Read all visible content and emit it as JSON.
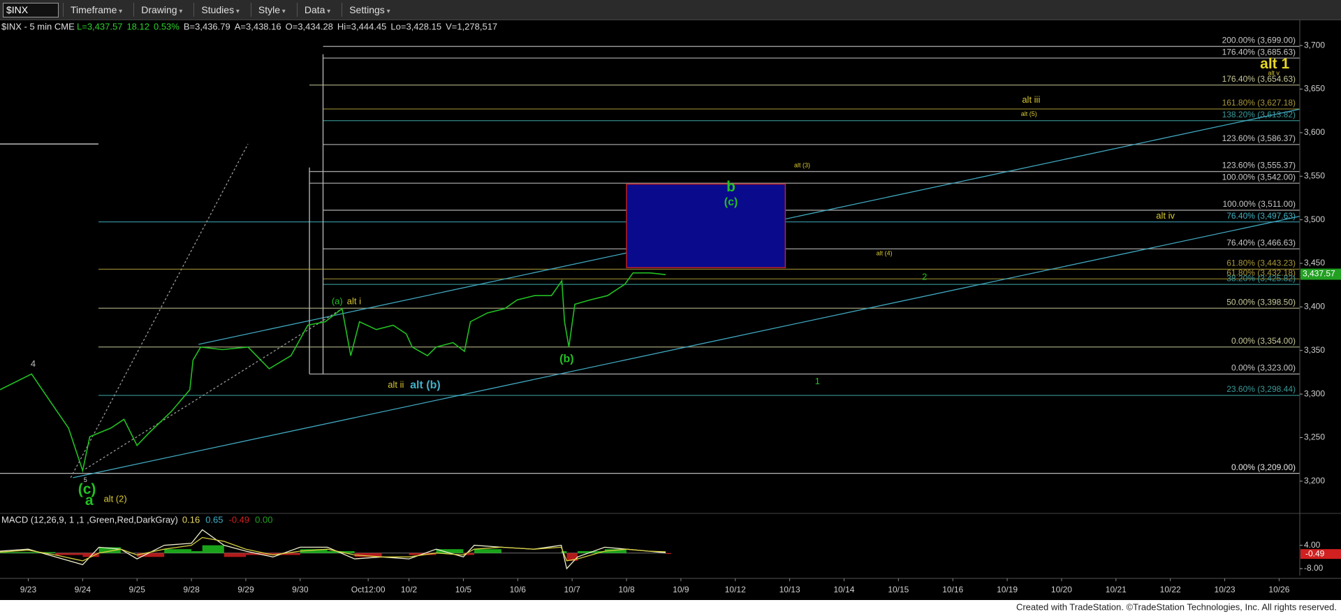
{
  "toolbar": {
    "symbol": "$INX",
    "buttons": [
      "Timeframe",
      "Drawing",
      "Studies",
      "Style",
      "Data",
      "Settings"
    ]
  },
  "footer": "Created with TradeStation. ©TradeStation Technologies, Inc. All rights reserved.",
  "chart_data": [
    {
      "type": "line",
      "title": "$INX - 5 min CME",
      "header_values": [
        {
          "text": "L=3,437.57",
          "color": "#2ad02a"
        },
        {
          "text": "18.12",
          "color": "#2ad02a"
        },
        {
          "text": "0.53%",
          "color": "#2ad02a"
        },
        {
          "text": "B=3,436.79",
          "color": "#d8d8d8"
        },
        {
          "text": "A=3,438.16",
          "color": "#d8d8d8"
        },
        {
          "text": "O=3,434.28",
          "color": "#d8d8d8"
        },
        {
          "text": "Hi=3,444.45",
          "color": "#d8d8d8"
        },
        {
          "text": "Lo=3,428.15",
          "color": "#d8d8d8"
        },
        {
          "text": "V=1,278,517",
          "color": "#d8d8d8"
        }
      ],
      "x": [
        -0.52,
        0.06,
        0.42,
        0.74,
        1.0,
        1.13,
        1.52,
        1.76,
        2.0,
        2.23,
        2.63,
        2.97,
        3.03,
        3.17,
        3.57,
        4.04,
        4.43,
        4.83,
        5.14,
        5.46,
        5.77,
        5.93,
        6.09,
        6.4,
        6.71,
        6.95,
        7.06,
        7.34,
        7.5,
        7.81,
        8.02,
        8.13,
        8.44,
        8.76,
        8.99,
        9.31,
        9.62,
        9.81,
        9.86,
        9.94,
        10.05,
        10.33,
        10.65,
        10.97,
        11.12,
        11.43,
        11.72
      ],
      "series": [
        {
          "name": "$INX",
          "color": "#22c022",
          "values": [
            3305,
            3323,
            3290,
            3261,
            3212,
            3251,
            3261,
            3271,
            3241,
            3256,
            3280,
            3305,
            3339,
            3354,
            3351,
            3354,
            3329,
            3344,
            3379,
            3383,
            3398,
            3344,
            3383,
            3374,
            3379,
            3369,
            3354,
            3344,
            3354,
            3359,
            3349,
            3383,
            3393,
            3398,
            3408,
            3413,
            3413,
            3430,
            3383,
            3354,
            3403,
            3408,
            3413,
            3426,
            3439,
            3439,
            3437
          ]
        }
      ],
      "last_price": {
        "value": 3437.57,
        "label": "3,437.57"
      },
      "xlim": [
        -0.52,
        23.38
      ],
      "ylim": [
        3163,
        3729
      ],
      "yticks": [
        {
          "value": 3200,
          "label": "3,200"
        },
        {
          "value": 3250,
          "label": "3,250"
        },
        {
          "value": 3300,
          "label": "3,300"
        },
        {
          "value": 3350,
          "label": "3,350"
        },
        {
          "value": 3400,
          "label": "3,400"
        },
        {
          "value": 3450,
          "label": "3,450"
        },
        {
          "value": 3500,
          "label": "3,500"
        },
        {
          "value": 3550,
          "label": "3,550"
        },
        {
          "value": 3600,
          "label": "3,600"
        },
        {
          "value": 3650,
          "label": "3,650"
        },
        {
          "value": 3700,
          "label": "3,700"
        }
      ],
      "xticks": [
        {
          "value": 0,
          "label": "9/23"
        },
        {
          "value": 1,
          "label": "9/24"
        },
        {
          "value": 2,
          "label": "9/25"
        },
        {
          "value": 3,
          "label": "9/28"
        },
        {
          "value": 4,
          "label": "9/29"
        },
        {
          "value": 5,
          "label": "9/30"
        },
        {
          "value": 6.25,
          "label": "Oct12:00"
        },
        {
          "value": 7,
          "label": "10/2"
        },
        {
          "value": 8,
          "label": "10/5"
        },
        {
          "value": 9,
          "label": "10/6"
        },
        {
          "value": 10,
          "label": "10/7"
        },
        {
          "value": 11,
          "label": "10/8"
        },
        {
          "value": 12,
          "label": "10/9"
        },
        {
          "value": 13,
          "label": "10/12"
        },
        {
          "value": 14,
          "label": "10/13"
        },
        {
          "value": 15,
          "label": "10/14"
        },
        {
          "value": 16,
          "label": "10/15"
        },
        {
          "value": 17,
          "label": "10/16"
        },
        {
          "value": 18,
          "label": "10/19"
        },
        {
          "value": 19,
          "label": "10/20"
        },
        {
          "value": 20,
          "label": "10/21"
        },
        {
          "value": 21,
          "label": "10/22"
        },
        {
          "value": 22,
          "label": "10/23"
        },
        {
          "value": 23,
          "label": "10/26"
        }
      ],
      "fib_levels": [
        {
          "label": "200.00% (3,699.00)",
          "price": 3699,
          "start": 5.42,
          "color": "#c8c8c8"
        },
        {
          "label": "176.40% (3,685.63)",
          "price": 3685.63,
          "start": 5.42,
          "color": "#c8c8c8"
        },
        {
          "label": "176.40% (3,654.63)",
          "price": 3654.63,
          "start": 5.17,
          "color": "#c8c89a"
        },
        {
          "label": "161.80% (3,627.18)",
          "price": 3627.18,
          "start": 5.42,
          "color": "#a89838"
        },
        {
          "label": "138.20% (3,613.82)",
          "price": 3613.82,
          "start": 5.42,
          "color": "#3a9a9a"
        },
        {
          "label": "123.60% (3,586.37)",
          "price": 3586.37,
          "start": 5.42,
          "color": "#c8c8c8"
        },
        {
          "label": "123.60% (3,555.37)",
          "price": 3555.37,
          "start": 5.17,
          "color": "#c8c8c8"
        },
        {
          "label": "100.00% (3,542.00)",
          "price": 3542,
          "start": 5.17,
          "color": "#c8c8c8"
        },
        {
          "label": "100.00% (3,511.00)",
          "price": 3511,
          "start": 5.42,
          "color": "#c8c8c8"
        },
        {
          "label": "76.40% (3,497.63)",
          "price": 3497.63,
          "start": 1.29,
          "color": "#40b0c0"
        },
        {
          "label": "76.40% (3,466.63)",
          "price": 3466.63,
          "start": 5.42,
          "color": "#c8c8c8"
        },
        {
          "label": "61.80% (3,443.23)",
          "price": 3443.23,
          "start": 1.29,
          "color": "#a89838"
        },
        {
          "label": "61.80% (3,432.18)",
          "price": 3432.18,
          "start": 5.42,
          "color": "#a89838"
        },
        {
          "label": "38.20% (3,425.82)",
          "price": 3425.82,
          "start": 5.42,
          "color": "#3a9a9a"
        },
        {
          "label": "50.00% (3,398.50)",
          "price": 3398.5,
          "start": 1.29,
          "color": "#c8c89a"
        },
        {
          "label": "0.00% (3,354.00)",
          "price": 3354,
          "start": 1.29,
          "color": "#c8c89a"
        },
        {
          "label": "0.00% (3,323.00)",
          "price": 3323,
          "start": 5.17,
          "color": "#c8c8c8"
        },
        {
          "label": "23.60% (3,298.44)",
          "price": 3298.44,
          "start": 1.29,
          "color": "#3a9a9a"
        },
        {
          "label": "0.00% (3,209.00)",
          "price": 3209,
          "start": -0.52,
          "color": "#e8e8e8"
        }
      ],
      "trendlines": [
        {
          "x": [
            3.13,
            23.38
          ],
          "y": [
            3357,
            3627
          ],
          "color": "#40a8c0",
          "dash": false
        },
        {
          "x": [
            0.82,
            23.38
          ],
          "y": [
            3204,
            3504
          ],
          "color": "#40a8c0",
          "dash": false
        },
        {
          "x": [
            0.78,
            4.04
          ],
          "y": [
            3204,
            3587
          ],
          "color": "#999999",
          "dash": true
        },
        {
          "x": [
            1.05,
            5.77
          ],
          "y": [
            3214,
            3398
          ],
          "color": "#999999",
          "dash": true
        },
        {
          "x": [
            -0.52,
            1.29
          ],
          "y": [
            3587,
            3587
          ],
          "color": "#e0e0e0",
          "dash": false
        },
        {
          "x": [
            5.42,
            5.42
          ],
          "y": [
            3323,
            3690
          ],
          "color": "#bbbbbb",
          "dash": false
        },
        {
          "x": [
            5.17,
            5.17
          ],
          "y": [
            3323,
            3560
          ],
          "color": "#bbbbbb",
          "dash": false
        }
      ],
      "target_box": {
        "x": [
          11.0,
          13.92
        ],
        "y": [
          3445,
          3541
        ],
        "color": "#0a0a8c"
      },
      "annotations": [
        {
          "text": "4",
          "x": 0.09,
          "y": 3334,
          "color": "#bbbbbb",
          "style": "normal"
        },
        {
          "text": "5",
          "x": 1.05,
          "y": 3201,
          "color": "#dddddd",
          "style": "small"
        },
        {
          "text": "(c)",
          "x": 1.08,
          "y": 3190,
          "color": "#22c022",
          "style": "big"
        },
        {
          "text": "a",
          "x": 1.12,
          "y": 3177,
          "color": "#22c022",
          "style": "big"
        },
        {
          "text": "alt (2)",
          "x": 1.6,
          "y": 3179,
          "color": "#d8c830",
          "style": "normal"
        },
        {
          "text": "(a)",
          "x": 5.68,
          "y": 3406,
          "color": "#22c022",
          "style": "normal"
        },
        {
          "text": "alt i",
          "x": 5.99,
          "y": 3406,
          "color": "#d8c830",
          "style": "normal"
        },
        {
          "text": "alt ii",
          "x": 6.76,
          "y": 3310,
          "color": "#d8c830",
          "style": "normal"
        },
        {
          "text": "alt (b)",
          "x": 7.3,
          "y": 3310,
          "color": "#40b0c8",
          "style": "mid"
        },
        {
          "text": "(b)",
          "x": 9.9,
          "y": 3340,
          "color": "#22c022",
          "style": "mid"
        },
        {
          "text": "b",
          "x": 12.92,
          "y": 3537,
          "color": "#22c022",
          "style": "big"
        },
        {
          "text": "(c)",
          "x": 12.92,
          "y": 3520,
          "color": "#22c022",
          "style": "mid"
        },
        {
          "text": "alt (3)",
          "x": 14.23,
          "y": 3562,
          "color": "#d8c830",
          "style": "small"
        },
        {
          "text": "alt (4)",
          "x": 15.74,
          "y": 3461,
          "color": "#d8c830",
          "style": "small"
        },
        {
          "text": "2",
          "x": 16.48,
          "y": 3434,
          "color": "#22c022",
          "style": "normal"
        },
        {
          "text": "1",
          "x": 14.51,
          "y": 3314,
          "color": "#22c022",
          "style": "normal"
        },
        {
          "text": "alt iii",
          "x": 18.44,
          "y": 3637,
          "color": "#d8c830",
          "style": "normal"
        },
        {
          "text": "alt (5)",
          "x": 18.4,
          "y": 3621,
          "color": "#d8c830",
          "style": "small"
        },
        {
          "text": "alt iv",
          "x": 20.91,
          "y": 3504,
          "color": "#d8c830",
          "style": "normal"
        },
        {
          "text": "alt 1",
          "x": 22.92,
          "y": 3678,
          "color": "#e8d820",
          "style": "big"
        },
        {
          "text": "alt v",
          "x": 22.9,
          "y": 3668,
          "color": "#d8c830",
          "style": "small"
        }
      ]
    },
    {
      "type": "macd",
      "title": "MACD (12,26,9, 1 ,1 ,Green,Red,DarkGray)",
      "legend_values": [
        {
          "text": "0.16",
          "color": "#e8d860"
        },
        {
          "text": "0.65",
          "color": "#40b0c8"
        },
        {
          "text": "-0.49",
          "color": "#d02020"
        },
        {
          "text": "0.00",
          "color": "#1fa01f"
        }
      ],
      "x": [
        -0.52,
        0,
        0.5,
        1,
        1.3,
        1.7,
        2,
        2.5,
        3,
        3.2,
        3.6,
        4,
        4.5,
        5,
        5.5,
        6,
        6.5,
        7,
        7.5,
        8,
        8.2,
        8.7,
        9.3,
        9.8,
        9.9,
        10.1,
        10.6,
        11,
        11.4,
        11.72
      ],
      "series": [
        {
          "color": "#f0f0d0",
          "values": [
            1,
            2,
            -2,
            -6,
            3,
            2,
            -3,
            4,
            5,
            12,
            4,
            1,
            -2,
            3,
            3,
            -3,
            -2,
            -3,
            2,
            -2,
            4,
            3,
            2,
            4,
            -8,
            -2,
            3,
            2,
            1,
            0.16
          ]
        },
        {
          "color": "#d8d040",
          "values": [
            0.5,
            1.5,
            -1,
            -4,
            0,
            2,
            -1,
            2,
            4,
            8,
            6,
            2,
            -1,
            1,
            2,
            -1,
            -2,
            -2,
            0,
            -1,
            2,
            3,
            2,
            3,
            -4,
            -3,
            1,
            2,
            1,
            0.65
          ]
        }
      ],
      "hist": {
        "values": [
          0.5,
          0.5,
          -1,
          -2,
          3,
          0,
          -2,
          2,
          1,
          4,
          -2,
          -1,
          -1,
          2,
          1,
          -2,
          0,
          -1,
          2,
          -1,
          2,
          0,
          0,
          1,
          -4,
          1,
          2,
          0,
          0,
          -0.49
        ],
        "colors": [
          "#1fc01f",
          "#d02020"
        ]
      },
      "zero_line": 0,
      "zero_color": "#707070",
      "xlim": [
        -0.52,
        23.38
      ],
      "ylim": [
        -11.6,
        20.4
      ],
      "yticks": [
        {
          "value": 4,
          "label": "4.00"
        },
        {
          "value": -8,
          "label": "-8.00"
        }
      ]
    }
  ]
}
